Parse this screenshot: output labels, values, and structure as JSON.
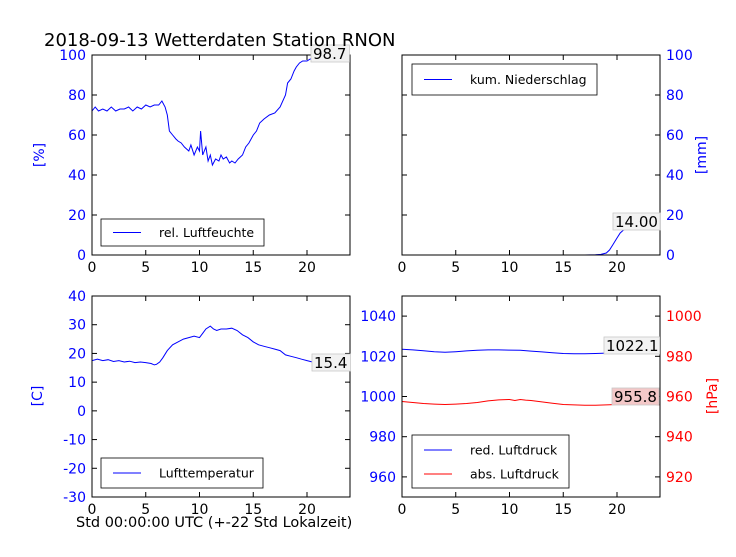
{
  "title": "2018-09-13 Wetterdaten Station RNON",
  "xlabel": "Std 00:00:00 UTC (+-22 Std Lokalzeit)",
  "colors": {
    "primary": "#0000ff",
    "secondary": "#ff0000",
    "frame": "#000000"
  },
  "chart_data": [
    {
      "type": "line",
      "panel": "top-left",
      "ylabel": "[%]",
      "ylabel_color": "#0000ff",
      "xlim": [
        0,
        24
      ],
      "ylim": [
        0,
        100
      ],
      "xticks": [
        0,
        5,
        10,
        15,
        20
      ],
      "yticks": [
        0,
        20,
        40,
        60,
        80,
        100
      ],
      "ytick_color": "#0000ff",
      "legend": "bottom-left",
      "annotation": "98.7",
      "series": [
        {
          "name": "rel. Luftfeuchte",
          "color": "#0000ff",
          "x": [
            0,
            0.3,
            0.6,
            1,
            1.4,
            1.8,
            2.2,
            2.6,
            3,
            3.4,
            3.8,
            4.2,
            4.6,
            5,
            5.4,
            5.8,
            6.2,
            6.5,
            6.8,
            7,
            7.2,
            7.5,
            7.8,
            8,
            8.3,
            8.6,
            9,
            9.2,
            9.5,
            9.8,
            10,
            10.1,
            10.3,
            10.6,
            10.8,
            11,
            11.2,
            11.5,
            11.8,
            12,
            12.2,
            12.5,
            12.8,
            13,
            13.3,
            13.6,
            14,
            14.3,
            14.6,
            15,
            15.3,
            15.6,
            16,
            16.5,
            17,
            17.5,
            18,
            18.2,
            18.5,
            18.8,
            19,
            19.3,
            19.6,
            20,
            20.3,
            20.6,
            21,
            21.5,
            22,
            22.5,
            23,
            23.5,
            24
          ],
          "y": [
            72,
            74,
            72,
            73,
            72,
            74,
            72,
            73,
            73,
            74,
            72,
            74,
            73,
            75,
            74,
            75,
            75,
            77,
            74,
            70,
            62,
            60,
            58,
            57,
            56,
            54,
            52,
            55,
            50,
            54,
            52,
            62,
            50,
            54,
            47,
            50,
            45,
            48,
            47,
            50,
            48,
            49,
            46,
            47,
            46,
            48,
            50,
            54,
            56,
            60,
            62,
            66,
            68,
            70,
            71,
            74,
            80,
            86,
            88,
            92,
            94,
            96,
            97,
            97,
            98,
            98,
            98,
            98,
            99,
            98,
            99,
            99,
            98.7
          ]
        }
      ]
    },
    {
      "type": "line",
      "panel": "top-right",
      "ylabel": "[mm]",
      "ylabel_color": "#0000ff",
      "xlim": [
        0,
        24
      ],
      "ylim": [
        0,
        100
      ],
      "xticks": [
        0,
        5,
        10,
        15,
        20
      ],
      "yticks": [
        0,
        20,
        40,
        60,
        80,
        100
      ],
      "ytick_color": "#0000ff",
      "yaxis_side": "right",
      "legend": "top-left",
      "annotation": "14.00",
      "series": [
        {
          "name": "kum. Niederschlag",
          "color": "#0000ff",
          "x": [
            0,
            17,
            18,
            18.5,
            19,
            19.3,
            19.6,
            20,
            20.3,
            20.6,
            21,
            21.5,
            22,
            24
          ],
          "y": [
            0,
            0,
            0.1,
            0.3,
            1,
            2.5,
            5,
            8.5,
            11,
            12.5,
            13.5,
            13.9,
            14,
            14
          ]
        }
      ]
    },
    {
      "type": "line",
      "panel": "bottom-left",
      "ylabel": "[C]",
      "ylabel_color": "#0000ff",
      "xlim": [
        0,
        24
      ],
      "ylim": [
        -30,
        40
      ],
      "xticks": [
        0,
        5,
        10,
        15,
        20
      ],
      "yticks": [
        -30,
        -20,
        -10,
        0,
        10,
        20,
        30,
        40
      ],
      "ytick_color": "#0000ff",
      "legend": "bottom-left",
      "annotation": "15.4",
      "series": [
        {
          "name": "Lufttemperatur",
          "color": "#0000ff",
          "x": [
            0,
            0.5,
            1,
            1.5,
            2,
            2.5,
            3,
            3.5,
            4,
            4.5,
            5,
            5.5,
            5.8,
            6,
            6.3,
            6.6,
            7,
            7.5,
            8,
            8.5,
            9,
            9.5,
            10,
            10.3,
            10.6,
            11,
            11.3,
            11.6,
            12,
            12.5,
            13,
            13.5,
            14,
            14.5,
            15,
            15.5,
            16,
            16.5,
            17,
            17.5,
            18,
            18.5,
            19,
            19.5,
            20,
            20.5,
            21,
            21.5,
            22,
            22.5,
            23,
            23.5,
            24
          ],
          "y": [
            17.5,
            18,
            17.5,
            17.8,
            17.2,
            17.5,
            17,
            17.3,
            16.8,
            17,
            16.8,
            16.5,
            16,
            16.2,
            17,
            18.5,
            21,
            23,
            24,
            25,
            25.5,
            26,
            25.5,
            27,
            28.5,
            29.5,
            28.5,
            28,
            28.5,
            28.5,
            28.8,
            28,
            26.5,
            25.5,
            24,
            23,
            22.5,
            22,
            21.5,
            21,
            19.5,
            19,
            18.5,
            18,
            17.5,
            17,
            16.5,
            16,
            15.8,
            15.6,
            15.5,
            15.4,
            15.4
          ]
        }
      ]
    },
    {
      "type": "line",
      "panel": "bottom-right",
      "xlim": [
        0,
        24
      ],
      "ylim": [
        950,
        1050
      ],
      "yticks": [
        960,
        980,
        1000,
        1020,
        1040
      ],
      "ytick_color": "#0000ff",
      "ylim_right": [
        910,
        1010
      ],
      "yticks_right": [
        920,
        940,
        960,
        980,
        1000
      ],
      "ytick_right_color": "#ff0000",
      "ylabel_right": "[hPa]",
      "ylabel_right_color": "#ff0000",
      "xticks": [
        0,
        5,
        10,
        15,
        20
      ],
      "legend": "bottom-left",
      "annotations": [
        "1022.1",
        "955.8"
      ],
      "series": [
        {
          "name": "red. Luftdruck",
          "color": "#0000ff",
          "axis": "left",
          "x": [
            0,
            1,
            2,
            3,
            4,
            5,
            6,
            7,
            8,
            9,
            10,
            11,
            12,
            13,
            14,
            15,
            16,
            17,
            18,
            19,
            20,
            21,
            22,
            23,
            24
          ],
          "y": [
            1023.5,
            1023.2,
            1022.8,
            1022.3,
            1022,
            1022.3,
            1022.7,
            1023,
            1023.2,
            1023.2,
            1023.1,
            1023,
            1022.6,
            1022.2,
            1021.8,
            1021.4,
            1021.3,
            1021.3,
            1021.4,
            1021.6,
            1021.8,
            1022,
            1022.1,
            1022.1,
            1022.1
          ]
        },
        {
          "name": "abs. Luftdruck",
          "color": "#ff0000",
          "axis": "right",
          "x": [
            0,
            1,
            2,
            3,
            4,
            5,
            6,
            7,
            8,
            9,
            10,
            10.5,
            11,
            11.5,
            12,
            13,
            14,
            15,
            16,
            17,
            18,
            19,
            20,
            21,
            22,
            23,
            24
          ],
          "y": [
            957.5,
            957,
            956.5,
            956.2,
            956,
            956.2,
            956.5,
            957,
            957.8,
            958.3,
            958.5,
            958,
            958.5,
            958.2,
            958,
            957.3,
            956.6,
            956,
            955.8,
            955.6,
            955.6,
            955.8,
            956,
            956.5,
            956.8,
            956.2,
            955.8
          ]
        }
      ]
    }
  ]
}
